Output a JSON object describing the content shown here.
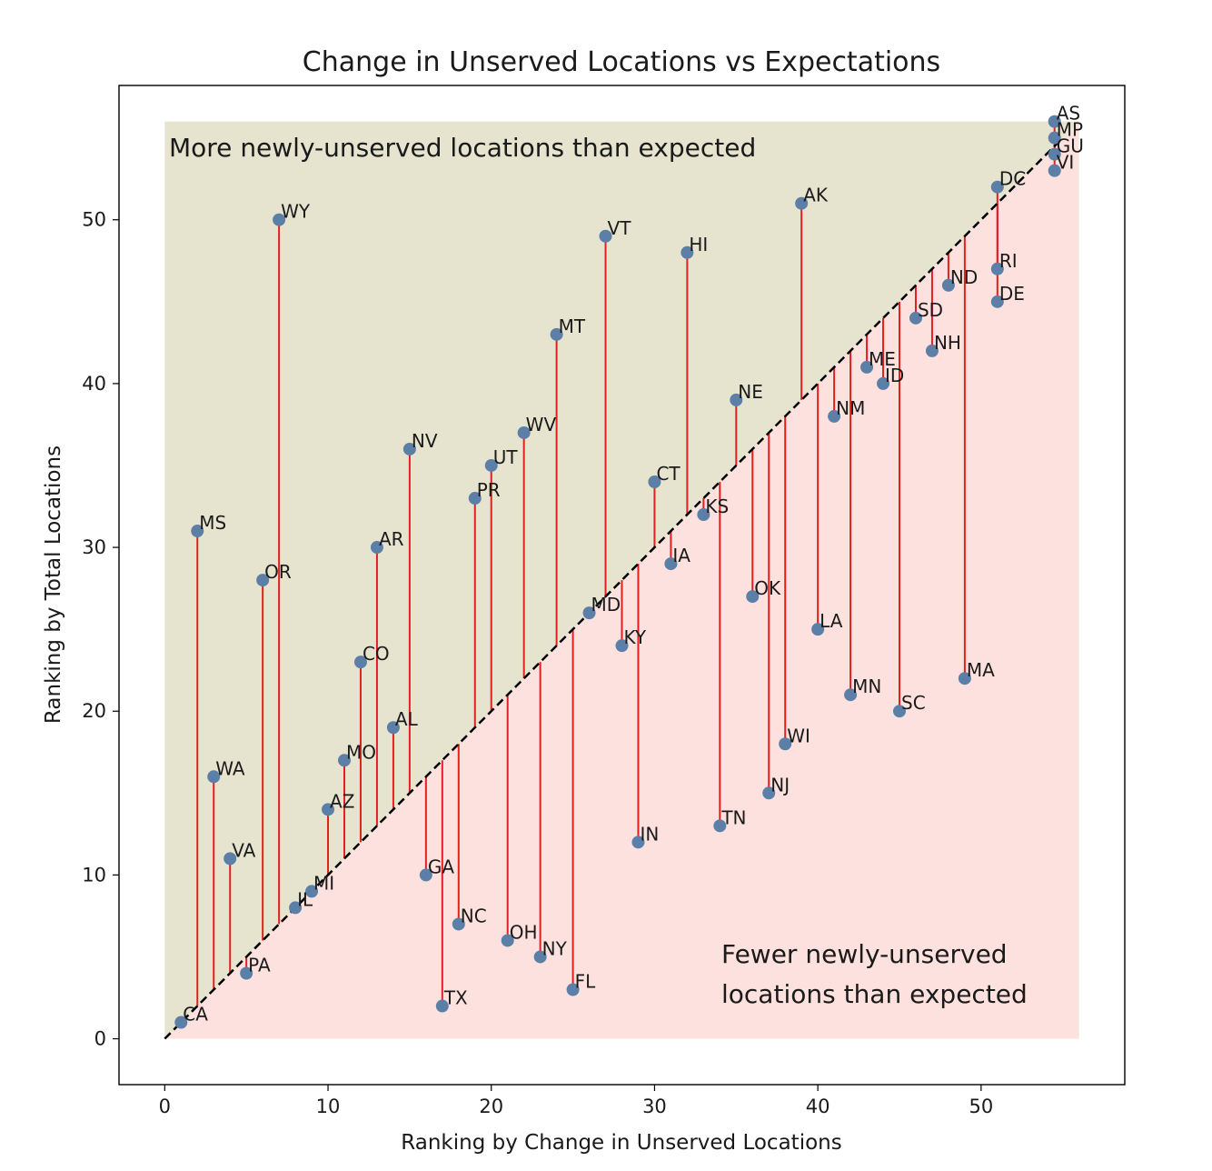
{
  "chart_data": {
    "type": "scatter",
    "title": "Change in Unserved Locations vs Expectations",
    "xlabel": "Ranking by Change in Unserved Locations",
    "ylabel": "Ranking by Total Locations",
    "xlim": [
      -2.8,
      58.8
    ],
    "ylim": [
      -2.8,
      58.2
    ],
    "x_ticks": [
      0,
      10,
      20,
      30,
      40,
      50
    ],
    "y_ticks": [
      0,
      10,
      20,
      30,
      40,
      50
    ],
    "grid": false,
    "reference_line": {
      "from": [
        0,
        0
      ],
      "to": [
        55,
        55
      ],
      "style": "dashed",
      "color": "#000000"
    },
    "region_upper": {
      "label": "More newly-unserved locations than expected",
      "color": "#e6e4cf"
    },
    "region_lower": {
      "label_lines": [
        "Fewer newly-unserved",
        "locations than expected"
      ],
      "color": "#fde1de"
    },
    "point_color": "#5b7fa6",
    "residual_color": "#e32020",
    "points": [
      {
        "label": "CA",
        "x": 1,
        "y": 1
      },
      {
        "label": "MS",
        "x": 2,
        "y": 31
      },
      {
        "label": "WA",
        "x": 3,
        "y": 16
      },
      {
        "label": "VA",
        "x": 4,
        "y": 11
      },
      {
        "label": "PA",
        "x": 5,
        "y": 4
      },
      {
        "label": "OR",
        "x": 6,
        "y": 28
      },
      {
        "label": "WY",
        "x": 7,
        "y": 50
      },
      {
        "label": "IL",
        "x": 8,
        "y": 8
      },
      {
        "label": "MI",
        "x": 9,
        "y": 9
      },
      {
        "label": "AZ",
        "x": 10,
        "y": 14
      },
      {
        "label": "MO",
        "x": 11,
        "y": 17
      },
      {
        "label": "CO",
        "x": 12,
        "y": 23
      },
      {
        "label": "AR",
        "x": 13,
        "y": 30
      },
      {
        "label": "AL",
        "x": 14,
        "y": 19
      },
      {
        "label": "NV",
        "x": 15,
        "y": 36
      },
      {
        "label": "GA",
        "x": 16,
        "y": 10
      },
      {
        "label": "TX",
        "x": 17,
        "y": 2
      },
      {
        "label": "NC",
        "x": 18,
        "y": 7
      },
      {
        "label": "PR",
        "x": 19,
        "y": 33
      },
      {
        "label": "UT",
        "x": 20,
        "y": 35
      },
      {
        "label": "OH",
        "x": 21,
        "y": 6
      },
      {
        "label": "WV",
        "x": 22,
        "y": 37
      },
      {
        "label": "NY",
        "x": 23,
        "y": 5
      },
      {
        "label": "MT",
        "x": 24,
        "y": 43
      },
      {
        "label": "FL",
        "x": 25,
        "y": 3
      },
      {
        "label": "MD",
        "x": 26,
        "y": 26
      },
      {
        "label": "VT",
        "x": 27,
        "y": 49
      },
      {
        "label": "KY",
        "x": 28,
        "y": 24
      },
      {
        "label": "IN",
        "x": 29,
        "y": 12
      },
      {
        "label": "CT",
        "x": 30,
        "y": 34
      },
      {
        "label": "IA",
        "x": 31,
        "y": 29
      },
      {
        "label": "HI",
        "x": 32,
        "y": 48
      },
      {
        "label": "KS",
        "x": 33,
        "y": 32
      },
      {
        "label": "TN",
        "x": 34,
        "y": 13
      },
      {
        "label": "NE",
        "x": 35,
        "y": 39
      },
      {
        "label": "OK",
        "x": 36,
        "y": 27
      },
      {
        "label": "NJ",
        "x": 37,
        "y": 15
      },
      {
        "label": "WI",
        "x": 38,
        "y": 18
      },
      {
        "label": "AK",
        "x": 39,
        "y": 51
      },
      {
        "label": "LA",
        "x": 40,
        "y": 25
      },
      {
        "label": "NM",
        "x": 41,
        "y": 38
      },
      {
        "label": "MN",
        "x": 42,
        "y": 21
      },
      {
        "label": "ME",
        "x": 43,
        "y": 41
      },
      {
        "label": "ID",
        "x": 44,
        "y": 40
      },
      {
        "label": "SC",
        "x": 45,
        "y": 20
      },
      {
        "label": "SD",
        "x": 46,
        "y": 44
      },
      {
        "label": "NH",
        "x": 47,
        "y": 42
      },
      {
        "label": "ND",
        "x": 48,
        "y": 46
      },
      {
        "label": "MA",
        "x": 49,
        "y": 22
      },
      {
        "label": "DC",
        "x": 51,
        "y": 52
      },
      {
        "label": "RI",
        "x": 51,
        "y": 47
      },
      {
        "label": "DE",
        "x": 51,
        "y": 45
      },
      {
        "label": "AS",
        "x": 54.5,
        "y": 56
      },
      {
        "label": "MP",
        "x": 54.5,
        "y": 55
      },
      {
        "label": "GU",
        "x": 54.5,
        "y": 54
      },
      {
        "label": "VI",
        "x": 54.5,
        "y": 53
      }
    ]
  }
}
